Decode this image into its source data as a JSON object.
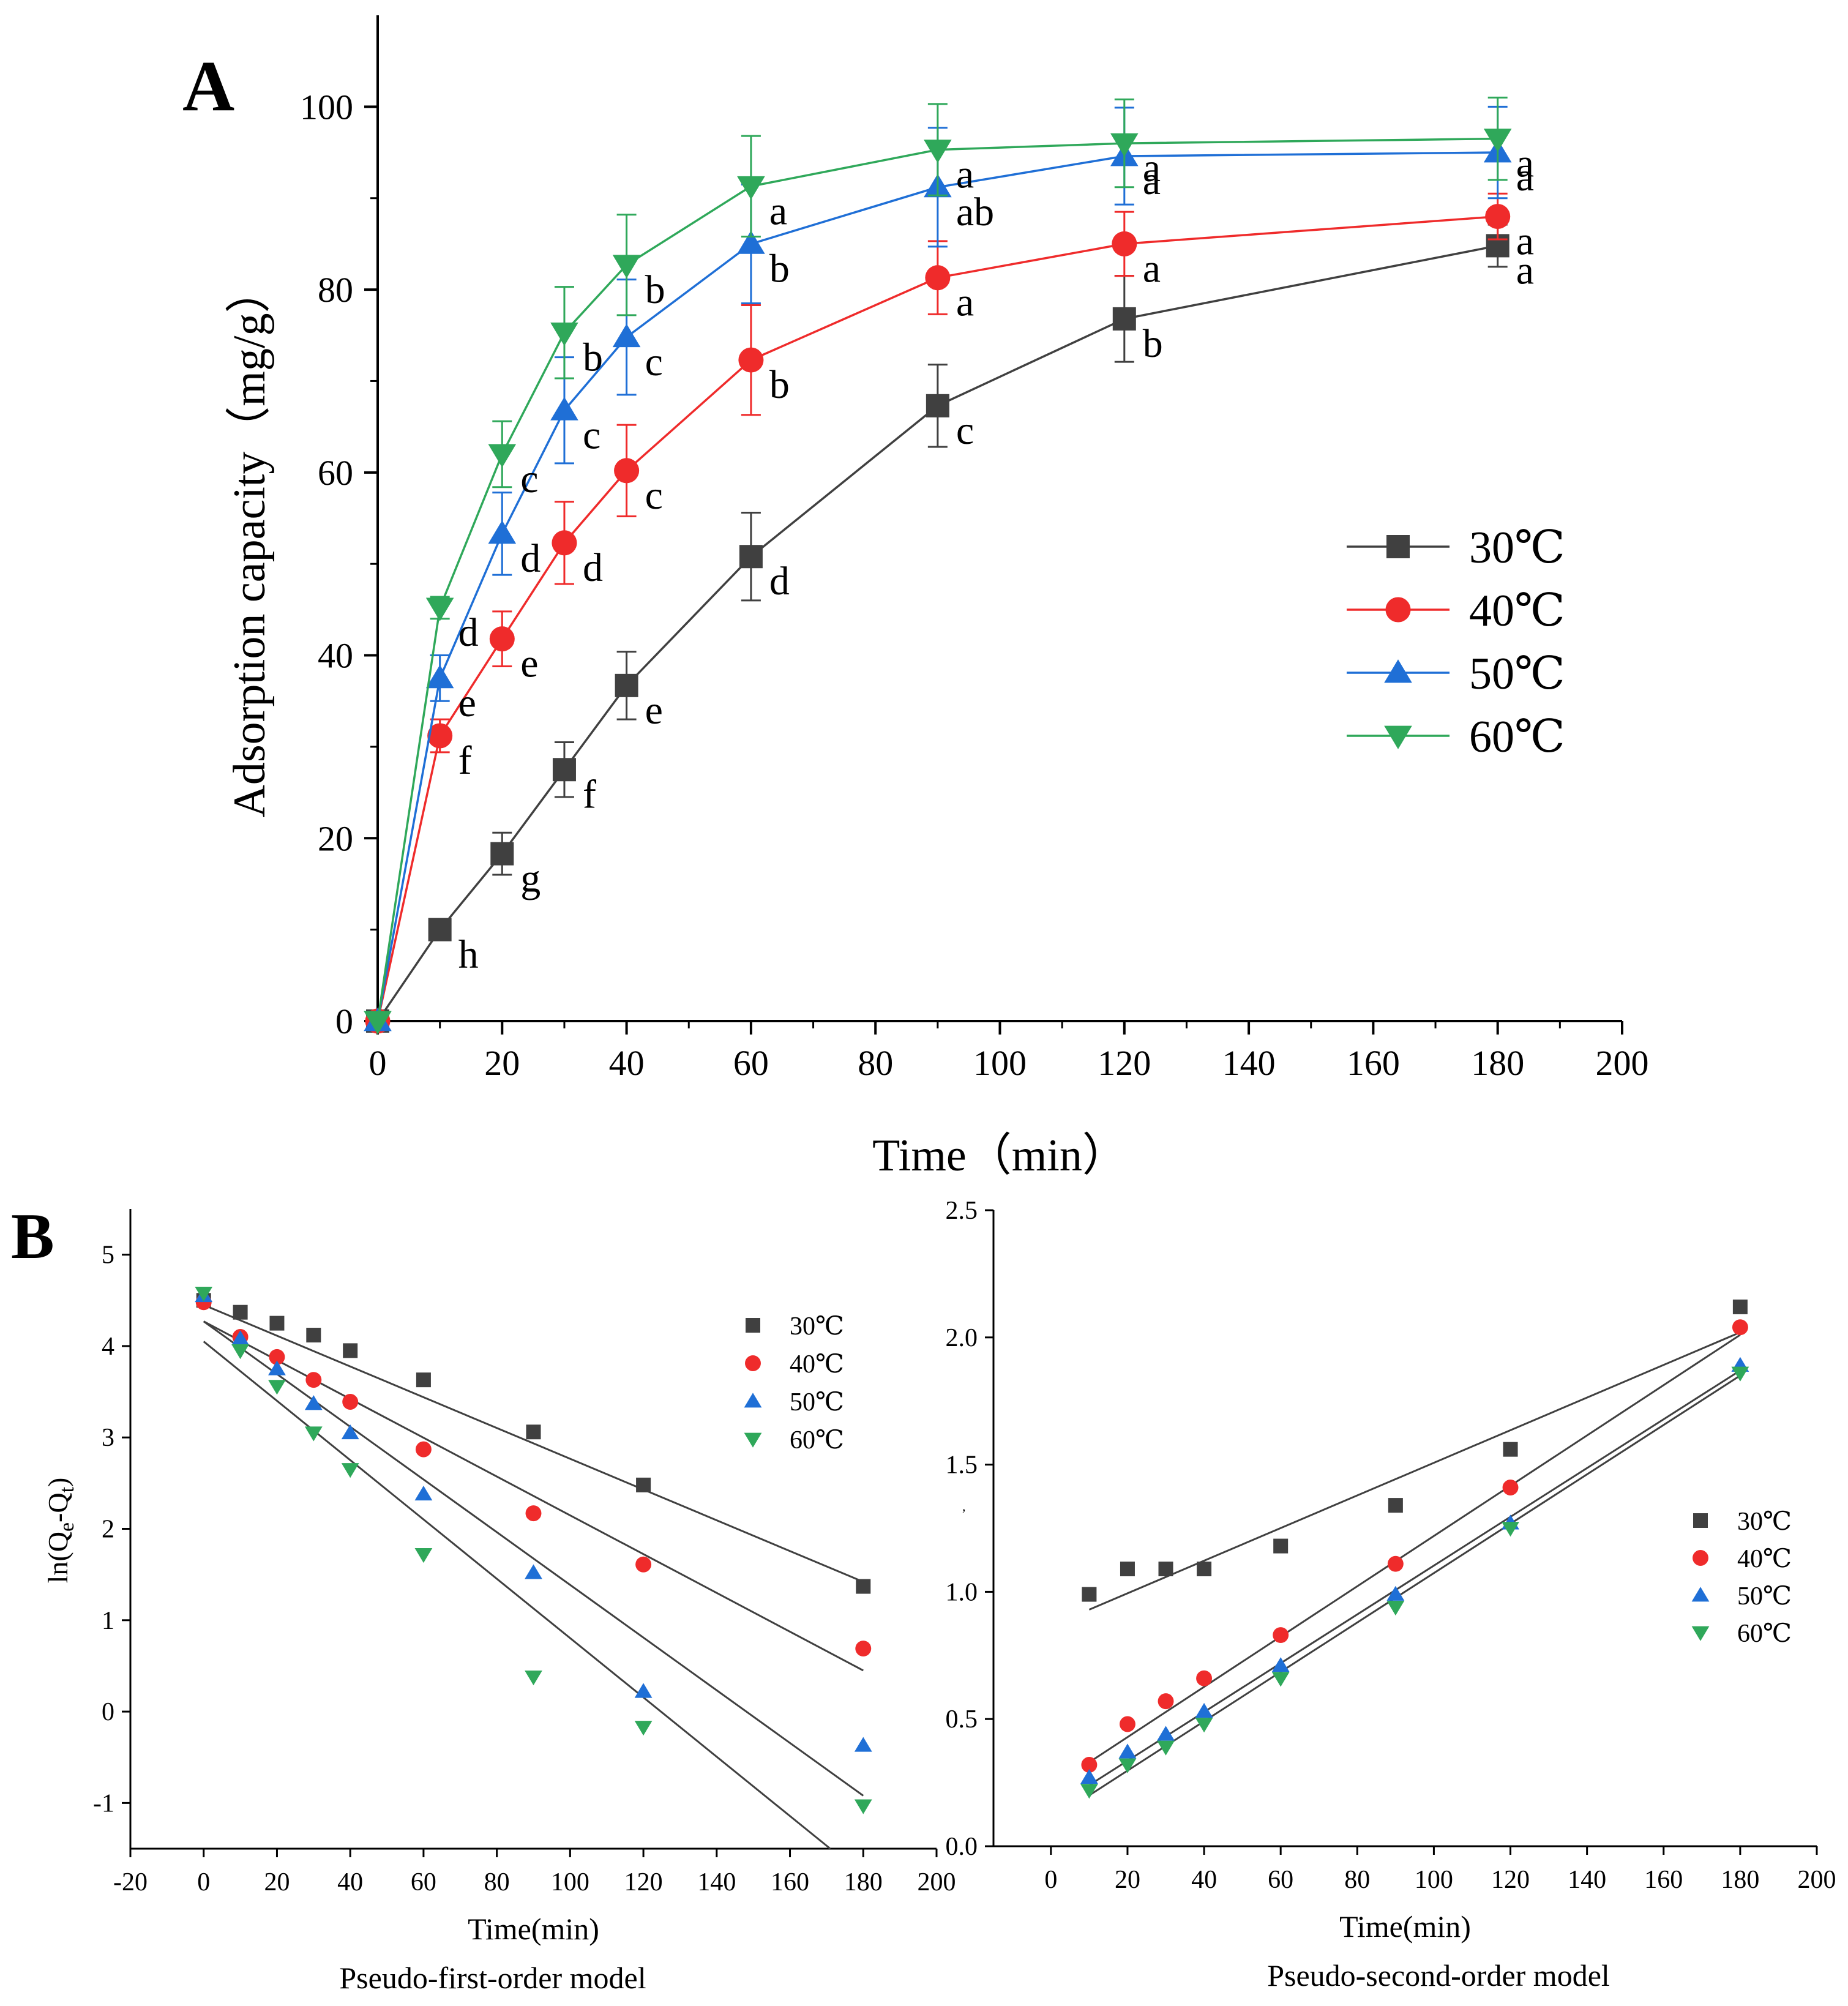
{
  "chart_data": [
    {
      "panel_label": "A",
      "type": "line",
      "xlabel": "Time（min）",
      "ylabel": "Adsorption capacity（mg/g）",
      "xlim": [
        0,
        200
      ],
      "ylim": [
        0,
        110
      ],
      "xticks": [
        0,
        20,
        40,
        60,
        80,
        100,
        120,
        140,
        160,
        180,
        200
      ],
      "yticks": [
        0,
        20,
        40,
        60,
        80,
        100
      ],
      "legend_position": "right-middle",
      "x": [
        0,
        10,
        20,
        30,
        40,
        60,
        90,
        120,
        180
      ],
      "series": [
        {
          "name": "30℃",
          "color": "#404040",
          "marker": "square",
          "values": [
            0,
            10,
            18.3,
            27.5,
            36.7,
            50.8,
            67.3,
            76.8,
            84.8
          ],
          "errors": [
            0,
            0,
            2.3,
            3,
            3.7,
            4.8,
            4.5,
            4.7,
            2.3
          ],
          "letters": [
            "",
            "h",
            "g",
            "f",
            "e",
            "d",
            "c",
            "b",
            "a"
          ]
        },
        {
          "name": "40℃",
          "color": "#ef2b2b",
          "marker": "circle",
          "values": [
            0,
            31.2,
            41.8,
            52.3,
            60.2,
            72.3,
            81.3,
            85,
            88
          ],
          "errors": [
            0,
            1.8,
            3,
            4.5,
            5,
            6,
            4,
            3.5,
            2.5
          ],
          "letters": [
            "",
            "f",
            "e",
            "d",
            "c",
            "b",
            "a",
            "a",
            "a"
          ]
        },
        {
          "name": "50℃",
          "color": "#1f6fd6",
          "marker": "triangle-up",
          "values": [
            0,
            37.5,
            53.3,
            66.8,
            74.8,
            85,
            91.2,
            94.6,
            95
          ],
          "errors": [
            0,
            2.5,
            4.5,
            5.8,
            6.3,
            6.5,
            6.5,
            5.3,
            5
          ],
          "letters": [
            "",
            "e",
            "d",
            "c",
            "c",
            "b",
            "ab",
            "a",
            "a"
          ]
        },
        {
          "name": "60℃",
          "color": "#2fa85a",
          "marker": "triangle-down",
          "values": [
            0,
            45.2,
            62,
            75.3,
            82.7,
            91.3,
            95.3,
            96,
            96.5
          ],
          "errors": [
            0,
            1.2,
            3.6,
            5,
            5.5,
            5.5,
            5,
            4.8,
            4.5
          ],
          "letters": [
            "",
            "d",
            "c",
            "b",
            "b",
            "a",
            "a",
            "a",
            "a"
          ]
        }
      ]
    },
    {
      "panel_label": "B",
      "subtitle": "Pseudo-first-order model",
      "type": "scatter",
      "xlabel": "Time(min)",
      "ylabel": "ln(Qe-Qt)",
      "xlim": [
        -20,
        200
      ],
      "ylim": [
        -1.5,
        5.5
      ],
      "xticks": [
        -20,
        0,
        20,
        40,
        60,
        80,
        100,
        120,
        140,
        160,
        180,
        200
      ],
      "yticks": [
        -1,
        0,
        1,
        2,
        3,
        4,
        5
      ],
      "legend_position": "top-right",
      "x": [
        0,
        10,
        20,
        30,
        40,
        60,
        90,
        120,
        180
      ],
      "series": [
        {
          "name": "30℃",
          "color": "#404040",
          "marker": "square",
          "values": [
            4.5,
            4.37,
            4.25,
            4.12,
            3.95,
            3.63,
            3.06,
            2.48,
            1.37
          ],
          "fit": {
            "x": [
              0,
              180
            ],
            "y": [
              4.45,
              1.42
            ]
          }
        },
        {
          "name": "40℃",
          "color": "#ef2b2b",
          "marker": "circle",
          "values": [
            4.48,
            4.1,
            3.88,
            3.63,
            3.39,
            2.87,
            2.17,
            1.61,
            0.69
          ],
          "fit": {
            "x": [
              0,
              180
            ],
            "y": [
              4.27,
              0.45
            ]
          }
        },
        {
          "name": "50℃",
          "color": "#1f6fd6",
          "marker": "triangle-up",
          "values": [
            4.55,
            4.08,
            3.75,
            3.37,
            3.05,
            2.38,
            1.52,
            0.22,
            -0.37
          ],
          "fit": {
            "x": [
              0,
              180
            ],
            "y": [
              4.27,
              -0.92
            ]
          }
        },
        {
          "name": "60℃",
          "color": "#2fa85a",
          "marker": "triangle-down",
          "values": [
            4.58,
            3.95,
            3.56,
            3.05,
            2.65,
            1.72,
            0.38,
            -0.17,
            -1.03
          ],
          "fit": {
            "x": [
              0,
              171
            ],
            "y": [
              4.05,
              -1.5
            ]
          }
        }
      ]
    },
    {
      "subtitle": "Pseudo-second-order model",
      "type": "scatter",
      "xlabel": "Time(min)",
      "ylabel": "",
      "xlim": [
        -15,
        200
      ],
      "ylim": [
        0,
        2.5
      ],
      "xticks": [
        0,
        20,
        40,
        60,
        80,
        100,
        120,
        140,
        160,
        180,
        200
      ],
      "yticks": [
        0.0,
        0.5,
        1.0,
        1.5,
        2.0,
        2.5
      ],
      "legend_position": "right-middle",
      "x": [
        10,
        20,
        30,
        40,
        60,
        90,
        120,
        180
      ],
      "series": [
        {
          "name": "30℃",
          "color": "#404040",
          "marker": "square",
          "values": [
            0.99,
            1.09,
            1.09,
            1.09,
            1.18,
            1.34,
            1.56,
            2.12
          ],
          "fit": {
            "x": [
              10,
              180
            ],
            "y": [
              0.93,
              2.02
            ]
          }
        },
        {
          "name": "40℃",
          "color": "#ef2b2b",
          "marker": "circle",
          "values": [
            0.32,
            0.48,
            0.57,
            0.66,
            0.83,
            1.11,
            1.41,
            2.04
          ],
          "fit": {
            "x": [
              10,
              180
            ],
            "y": [
              0.33,
              2.01
            ]
          }
        },
        {
          "name": "50℃",
          "color": "#1f6fd6",
          "marker": "triangle-up",
          "values": [
            0.27,
            0.37,
            0.44,
            0.53,
            0.71,
            0.99,
            1.27,
            1.89
          ],
          "fit": {
            "x": [
              10,
              180
            ],
            "y": [
              0.24,
              1.87
            ]
          }
        },
        {
          "name": "60℃",
          "color": "#2fa85a",
          "marker": "triangle-down",
          "values": [
            0.22,
            0.32,
            0.39,
            0.48,
            0.66,
            0.94,
            1.25,
            1.86
          ],
          "fit": {
            "x": [
              10,
              180
            ],
            "y": [
              0.2,
              1.85
            ]
          }
        }
      ]
    }
  ]
}
